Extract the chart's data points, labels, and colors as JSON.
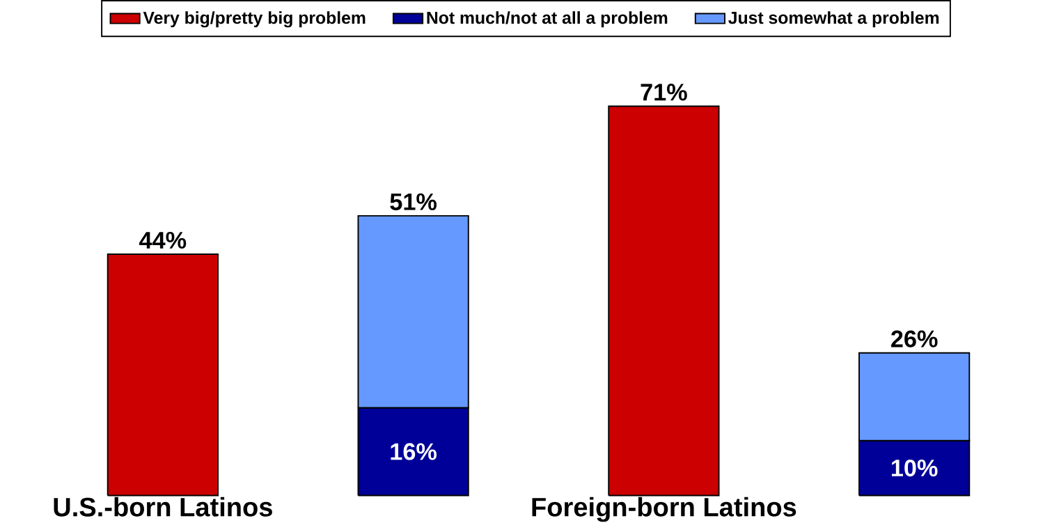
{
  "chart_data": {
    "type": "bar",
    "stacked": true,
    "legend": "top",
    "categories": [
      "U.S.-born Latinos",
      null,
      "Foreign-born Latinos",
      null
    ],
    "series": [
      {
        "name": "Very big/pretty big problem",
        "color": "#cc0000",
        "values": [
          44,
          null,
          71,
          null
        ],
        "value_labels": [
          "44%",
          null,
          "71%",
          null
        ]
      },
      {
        "name": "Not much/not at all a problem",
        "color": "#000099",
        "values": [
          null,
          16,
          null,
          10
        ],
        "value_labels": [
          null,
          "16%",
          null,
          "10%"
        ]
      },
      {
        "name": "Just somewhat a problem",
        "color": "#6699ff",
        "values": [
          null,
          35,
          null,
          16
        ]
      }
    ],
    "totals": [
      null,
      "51%",
      null,
      "26%"
    ]
  }
}
